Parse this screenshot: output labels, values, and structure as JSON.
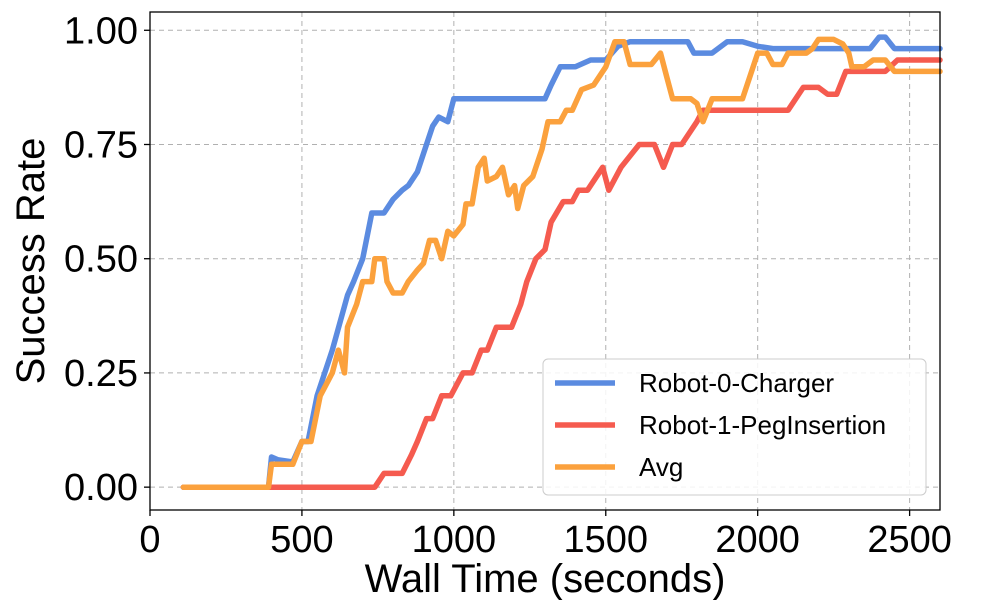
{
  "chart_data": {
    "type": "line",
    "title": "",
    "xlabel": "Wall Time (seconds)",
    "ylabel": "Success Rate",
    "xlim": [
      0,
      2600
    ],
    "ylim": [
      -0.05,
      1.04
    ],
    "xticks": [
      0,
      500,
      1000,
      1500,
      2000,
      2500
    ],
    "xtick_labels": [
      "0",
      "500",
      "1000",
      "1500",
      "2000",
      "2500"
    ],
    "yticks": [
      0,
      0.25,
      0.5,
      0.75,
      1.0
    ],
    "ytick_labels": [
      "0.00",
      "0.25",
      "0.50",
      "0.75",
      "1.00"
    ],
    "grid": true,
    "legend_position": "lower-right",
    "series": [
      {
        "name": "Robot-0-Charger",
        "color": "#5b8be0",
        "points": [
          [
            110,
            0
          ],
          [
            390,
            0
          ],
          [
            400,
            0.066
          ],
          [
            420,
            0.06
          ],
          [
            470,
            0.055
          ],
          [
            500,
            0.1
          ],
          [
            520,
            0.1
          ],
          [
            550,
            0.2
          ],
          [
            600,
            0.3
          ],
          [
            650,
            0.42
          ],
          [
            670,
            0.45
          ],
          [
            700,
            0.5
          ],
          [
            730,
            0.6
          ],
          [
            770,
            0.6
          ],
          [
            800,
            0.63
          ],
          [
            830,
            0.65
          ],
          [
            850,
            0.66
          ],
          [
            880,
            0.69
          ],
          [
            910,
            0.75
          ],
          [
            930,
            0.79
          ],
          [
            950,
            0.81
          ],
          [
            980,
            0.8
          ],
          [
            1000,
            0.85
          ],
          [
            1150,
            0.85
          ],
          [
            1300,
            0.85
          ],
          [
            1320,
            0.88
          ],
          [
            1350,
            0.92
          ],
          [
            1400,
            0.92
          ],
          [
            1450,
            0.935
          ],
          [
            1500,
            0.935
          ],
          [
            1540,
            0.965
          ],
          [
            1580,
            0.975
          ],
          [
            1650,
            0.975
          ],
          [
            1770,
            0.975
          ],
          [
            1790,
            0.95
          ],
          [
            1850,
            0.95
          ],
          [
            1900,
            0.975
          ],
          [
            1950,
            0.975
          ],
          [
            2000,
            0.965
          ],
          [
            2050,
            0.96
          ],
          [
            2200,
            0.96
          ],
          [
            2300,
            0.96
          ],
          [
            2370,
            0.96
          ],
          [
            2400,
            0.985
          ],
          [
            2420,
            0.985
          ],
          [
            2450,
            0.96
          ],
          [
            2600,
            0.96
          ]
        ]
      },
      {
        "name": "Robot-1-PegInsertion",
        "color": "#f55b4f",
        "points": [
          [
            110,
            0
          ],
          [
            740,
            0
          ],
          [
            770,
            0.03
          ],
          [
            830,
            0.03
          ],
          [
            860,
            0.07
          ],
          [
            880,
            0.1
          ],
          [
            910,
            0.15
          ],
          [
            930,
            0.15
          ],
          [
            960,
            0.2
          ],
          [
            990,
            0.2
          ],
          [
            1030,
            0.25
          ],
          [
            1060,
            0.25
          ],
          [
            1090,
            0.3
          ],
          [
            1110,
            0.3
          ],
          [
            1140,
            0.35
          ],
          [
            1190,
            0.35
          ],
          [
            1220,
            0.4
          ],
          [
            1240,
            0.45
          ],
          [
            1270,
            0.5
          ],
          [
            1300,
            0.52
          ],
          [
            1320,
            0.58
          ],
          [
            1360,
            0.625
          ],
          [
            1390,
            0.625
          ],
          [
            1410,
            0.65
          ],
          [
            1440,
            0.65
          ],
          [
            1490,
            0.7
          ],
          [
            1510,
            0.65
          ],
          [
            1550,
            0.7
          ],
          [
            1610,
            0.75
          ],
          [
            1660,
            0.75
          ],
          [
            1690,
            0.7
          ],
          [
            1720,
            0.75
          ],
          [
            1750,
            0.75
          ],
          [
            1800,
            0.8
          ],
          [
            1820,
            0.825
          ],
          [
            1850,
            0.825
          ],
          [
            2050,
            0.825
          ],
          [
            2100,
            0.825
          ],
          [
            2150,
            0.875
          ],
          [
            2200,
            0.875
          ],
          [
            2230,
            0.86
          ],
          [
            2260,
            0.86
          ],
          [
            2290,
            0.91
          ],
          [
            2380,
            0.91
          ],
          [
            2420,
            0.91
          ],
          [
            2460,
            0.935
          ],
          [
            2600,
            0.935
          ]
        ]
      },
      {
        "name": "Avg",
        "color": "#fba13d",
        "points": [
          [
            110,
            0
          ],
          [
            390,
            0
          ],
          [
            400,
            0.05
          ],
          [
            470,
            0.05
          ],
          [
            500,
            0.1
          ],
          [
            530,
            0.1
          ],
          [
            560,
            0.2
          ],
          [
            600,
            0.25
          ],
          [
            620,
            0.3
          ],
          [
            640,
            0.25
          ],
          [
            650,
            0.35
          ],
          [
            680,
            0.4
          ],
          [
            700,
            0.45
          ],
          [
            730,
            0.45
          ],
          [
            740,
            0.5
          ],
          [
            770,
            0.5
          ],
          [
            780,
            0.45
          ],
          [
            800,
            0.425
          ],
          [
            830,
            0.425
          ],
          [
            850,
            0.45
          ],
          [
            880,
            0.475
          ],
          [
            900,
            0.49
          ],
          [
            920,
            0.54
          ],
          [
            940,
            0.54
          ],
          [
            960,
            0.5
          ],
          [
            980,
            0.56
          ],
          [
            1000,
            0.55
          ],
          [
            1030,
            0.575
          ],
          [
            1040,
            0.62
          ],
          [
            1060,
            0.62
          ],
          [
            1080,
            0.7
          ],
          [
            1100,
            0.72
          ],
          [
            1110,
            0.67
          ],
          [
            1140,
            0.68
          ],
          [
            1160,
            0.7
          ],
          [
            1180,
            0.64
          ],
          [
            1200,
            0.66
          ],
          [
            1210,
            0.61
          ],
          [
            1230,
            0.66
          ],
          [
            1260,
            0.68
          ],
          [
            1290,
            0.74
          ],
          [
            1310,
            0.8
          ],
          [
            1350,
            0.8
          ],
          [
            1370,
            0.825
          ],
          [
            1390,
            0.825
          ],
          [
            1420,
            0.87
          ],
          [
            1460,
            0.88
          ],
          [
            1500,
            0.92
          ],
          [
            1530,
            0.975
          ],
          [
            1560,
            0.975
          ],
          [
            1580,
            0.925
          ],
          [
            1650,
            0.925
          ],
          [
            1680,
            0.95
          ],
          [
            1700,
            0.9
          ],
          [
            1720,
            0.85
          ],
          [
            1780,
            0.85
          ],
          [
            1800,
            0.84
          ],
          [
            1820,
            0.8
          ],
          [
            1850,
            0.85
          ],
          [
            1900,
            0.85
          ],
          [
            1950,
            0.85
          ],
          [
            2000,
            0.95
          ],
          [
            2030,
            0.95
          ],
          [
            2050,
            0.925
          ],
          [
            2080,
            0.925
          ],
          [
            2100,
            0.95
          ],
          [
            2160,
            0.95
          ],
          [
            2180,
            0.96
          ],
          [
            2200,
            0.98
          ],
          [
            2250,
            0.98
          ],
          [
            2280,
            0.97
          ],
          [
            2300,
            0.95
          ],
          [
            2310,
            0.92
          ],
          [
            2350,
            0.92
          ],
          [
            2380,
            0.935
          ],
          [
            2420,
            0.935
          ],
          [
            2450,
            0.91
          ],
          [
            2600,
            0.91
          ]
        ]
      }
    ]
  }
}
